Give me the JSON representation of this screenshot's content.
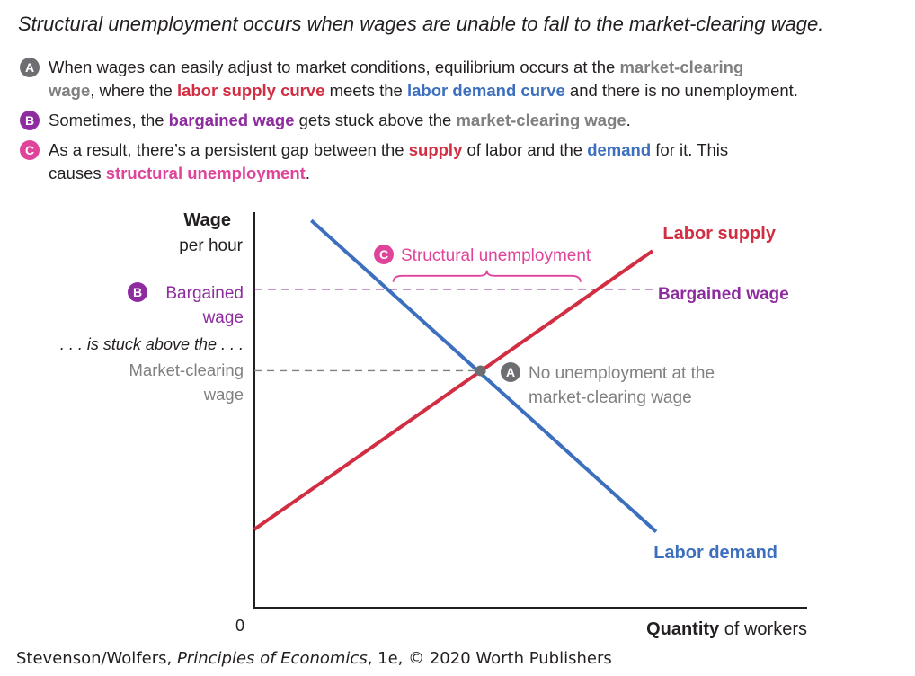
{
  "title": "Structural unemployment occurs when wages are unable to fall to the market-clearing wage.",
  "notes": [
    {
      "badge": "A",
      "badge_color": "#6d6e71",
      "line1": [
        {
          "text": "When wages can easily adjust to market conditions, equilibrium occurs at the ",
          "style": ""
        },
        {
          "text": "market-clearing",
          "style": "gray"
        }
      ],
      "line2": [
        {
          "text": "wage",
          "style": "gray"
        },
        {
          "text": ", where the ",
          "style": ""
        },
        {
          "text": "labor supply curve",
          "style": "red"
        },
        {
          "text": " meets the ",
          "style": ""
        },
        {
          "text": "labor demand curve",
          "style": "blue"
        },
        {
          "text": " and there is no unemployment.",
          "style": ""
        }
      ]
    },
    {
      "badge": "B",
      "badge_color": "#8e2c9f",
      "line1": [
        {
          "text": "Sometimes, the ",
          "style": ""
        },
        {
          "text": "bargained wage",
          "style": "purple"
        },
        {
          "text": " gets stuck above the ",
          "style": ""
        },
        {
          "text": "market-clearing wage",
          "style": "gray"
        },
        {
          "text": ".",
          "style": ""
        }
      ],
      "line2": []
    },
    {
      "badge": "C",
      "badge_color": "#e0449a",
      "line1": [
        {
          "text": "As a result, there’s a persistent gap between the ",
          "style": ""
        },
        {
          "text": "supply",
          "style": "red"
        },
        {
          "text": " of labor and the ",
          "style": ""
        },
        {
          "text": "demand",
          "style": "blue"
        },
        {
          "text": " for it. This",
          "style": ""
        }
      ],
      "line2": [
        {
          "text": "causes ",
          "style": ""
        },
        {
          "text": "structural unemployment",
          "style": "pink"
        },
        {
          "text": ".",
          "style": ""
        }
      ]
    }
  ],
  "chart_data": {
    "type": "line",
    "xlabel_bold": "Quantity",
    "xlabel_rest": " of workers",
    "ylabel_line1": "Wage",
    "ylabel_line2": "per hour",
    "origin_label": "0",
    "xlim": [
      0,
      100
    ],
    "ylim": [
      0,
      100
    ],
    "series": [
      {
        "name": "Labor supply",
        "color": "#d22e43",
        "x": [
          0,
          100
        ],
        "y": [
          19.8,
          90.2
        ]
      },
      {
        "name": "Labor demand",
        "color": "#3d6fbf",
        "x": [
          14.3,
          100.9
        ],
        "y": [
          97.9,
          19.2
        ]
      }
    ],
    "reference_lines": [
      {
        "name": "Bargained wage",
        "y": 80.5,
        "color": "#8e2c9f",
        "label_left_badge": "B",
        "label_left_line1": "Bargained",
        "label_left_line2": "wage",
        "label_right": "Bargained wage"
      },
      {
        "name": "Market-clearing wage",
        "y": 59.9,
        "color": "#808080",
        "label_left_line1": "Market-clearing",
        "label_left_line2": "wage"
      }
    ],
    "between_label": ". . . is stuck above the . . .",
    "equilibrium": {
      "x": 56.8,
      "y": 59.9,
      "badge": "A",
      "label_line1": "No unemployment at the",
      "label_line2": "market-clearing wage"
    },
    "gap": {
      "x_start": 34.9,
      "x_end": 81.9,
      "y": 80.5,
      "badge": "C",
      "label": "Structural unemployment",
      "color": "#e0449a"
    }
  },
  "credit": {
    "before": "Stevenson/Wolfers, ",
    "italic": "Principles of Economics",
    "after": ", 1e, © 2020 Worth Publishers"
  }
}
